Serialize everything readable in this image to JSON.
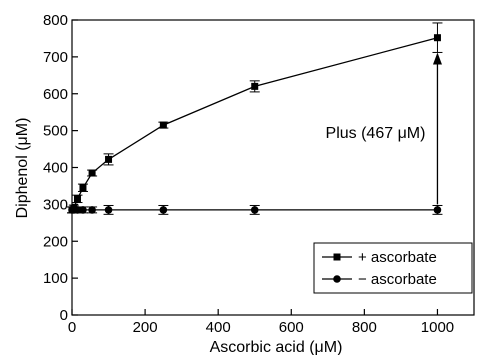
{
  "chart_data": {
    "type": "line",
    "xlabel": "Ascorbic acid (μM)",
    "ylabel": "Diphenol (μM)",
    "xlim": [
      0,
      1100
    ],
    "ylim": [
      0,
      800
    ],
    "x_ticks": [
      0,
      200,
      400,
      600,
      800,
      1000
    ],
    "y_ticks": [
      0,
      100,
      200,
      300,
      400,
      500,
      600,
      700,
      800
    ],
    "x_tick_labels": [
      "0",
      "200",
      "400",
      "600",
      "800",
      "1000"
    ],
    "y_tick_labels": [
      "0",
      "100",
      "200",
      "300",
      "400",
      "500",
      "600",
      "700",
      "800"
    ],
    "grid": false,
    "legend_position": "bottom-right",
    "series": [
      {
        "name": "+ ascorbate",
        "marker": "square",
        "points": [
          {
            "x": 0,
            "y": 285,
            "err": 8
          },
          {
            "x": 5,
            "y": 290,
            "err": 8
          },
          {
            "x": 15,
            "y": 315,
            "err": 10
          },
          {
            "x": 30,
            "y": 345,
            "err": 10
          },
          {
            "x": 55,
            "y": 385,
            "err": 8
          },
          {
            "x": 100,
            "y": 422,
            "err": 15
          },
          {
            "x": 250,
            "y": 515,
            "err": 8
          },
          {
            "x": 500,
            "y": 620,
            "err": 15
          },
          {
            "x": 1000,
            "y": 752,
            "err": 40
          }
        ]
      },
      {
        "name": "− ascorbate",
        "marker": "circle",
        "points": [
          {
            "x": 0,
            "y": 285,
            "err": 8
          },
          {
            "x": 5,
            "y": 285,
            "err": 8
          },
          {
            "x": 15,
            "y": 285,
            "err": 8
          },
          {
            "x": 30,
            "y": 285,
            "err": 8
          },
          {
            "x": 55,
            "y": 285,
            "err": 8
          },
          {
            "x": 100,
            "y": 285,
            "err": 12
          },
          {
            "x": 250,
            "y": 285,
            "err": 12
          },
          {
            "x": 500,
            "y": 285,
            "err": 12
          },
          {
            "x": 1000,
            "y": 285,
            "err": 12
          }
        ]
      }
    ],
    "annotations": [
      {
        "text": "Plus (467 μM)",
        "arrow_x": 1000,
        "arrow_from_y": 300,
        "arrow_to_y": 712
      }
    ]
  }
}
